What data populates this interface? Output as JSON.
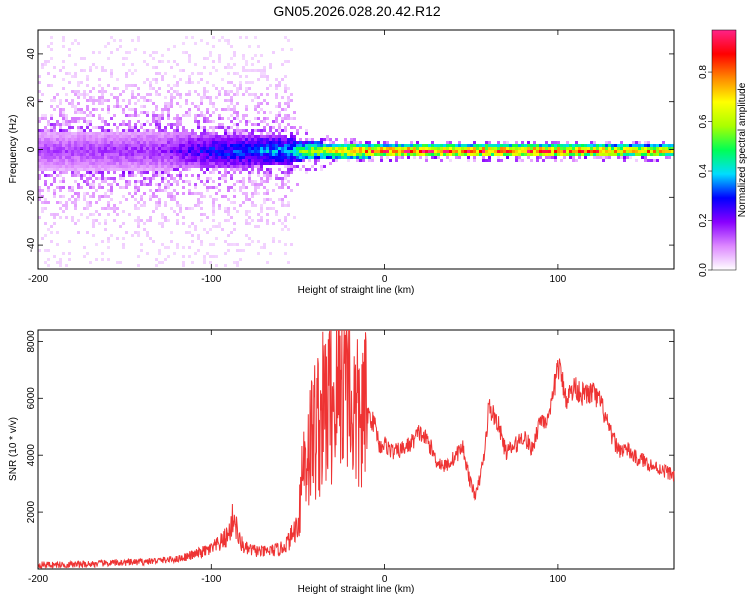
{
  "figure": {
    "title": "GN05.2026.028.20.42.R12"
  },
  "chart_data": [
    {
      "type": "heatmap",
      "id": "spectrogram",
      "xlabel": "Height of straight line (km)",
      "ylabel": "Frequency (Hz)",
      "xlim": [
        -200,
        167
      ],
      "ylim": [
        -50,
        50
      ],
      "xticks": [
        -200,
        -100,
        0,
        100
      ],
      "yticks": [
        -40,
        -20,
        0,
        20,
        40
      ],
      "colorbar": {
        "label": "Normalized spectral amplitude",
        "range": [
          0,
          0.97
        ],
        "ticks": [
          0,
          0.2,
          0.4,
          0.6,
          0.8
        ],
        "colors": [
          "#ffffff",
          "#dd88ff",
          "#8800ff",
          "#0000ff",
          "#00ddff",
          "#00ff55",
          "#aaff00",
          "#ffff00",
          "#ff8800",
          "#ff0000",
          "#ff2288"
        ]
      },
      "band_profile": [
        {
          "x": -200,
          "center": 0,
          "halfwidth": 8,
          "amplitude": 0.15,
          "spread": 48
        },
        {
          "x": -130,
          "center": 0,
          "halfwidth": 8,
          "amplitude": 0.18,
          "spread": 48
        },
        {
          "x": -100,
          "center": 1,
          "halfwidth": 7,
          "amplitude": 0.3,
          "spread": 48
        },
        {
          "x": -55,
          "center": 1,
          "halfwidth": 6,
          "amplitude": 0.4,
          "spread": 48
        },
        {
          "x": -50,
          "center": 0,
          "halfwidth": 4,
          "amplitude": 0.55,
          "spread": 10
        },
        {
          "x": -20,
          "center": 0,
          "halfwidth": 3,
          "amplitude": 0.8,
          "spread": 5
        },
        {
          "x": 0,
          "center": 0,
          "halfwidth": 2.5,
          "amplitude": 0.92,
          "spread": 4
        },
        {
          "x": 100,
          "center": 0,
          "halfwidth": 2.5,
          "amplitude": 0.9,
          "spread": 4
        },
        {
          "x": 167,
          "center": 0,
          "halfwidth": 2.5,
          "amplitude": 0.75,
          "spread": 4
        }
      ]
    },
    {
      "type": "line",
      "id": "snr",
      "xlabel": "Height of straight line (km)",
      "ylabel": "SNR (10 * v/v)",
      "xlim": [
        -200,
        167
      ],
      "ylim": [
        0,
        8400
      ],
      "xticks": [
        -200,
        -100,
        0,
        100
      ],
      "yticks": [
        2000,
        4000,
        6000,
        8000
      ],
      "color": "#ee3333",
      "series": [
        {
          "x": [
            -200,
            -180,
            -160,
            -140,
            -120,
            -110,
            -100,
            -95,
            -90,
            -87,
            -84,
            -80,
            -70,
            -60,
            -55,
            -50,
            -47,
            -44,
            -40,
            -35,
            -30,
            -25,
            -22,
            -20,
            -18,
            -15,
            -10,
            -5,
            -3,
            0,
            5,
            10,
            15,
            20,
            25,
            30,
            35,
            40,
            45,
            50,
            53,
            55,
            58,
            60,
            65,
            70,
            75,
            80,
            85,
            90,
            95,
            100,
            105,
            110,
            115,
            120,
            125,
            130,
            135,
            140,
            145,
            150,
            155,
            160,
            167
          ],
          "y": [
            150,
            150,
            200,
            250,
            350,
            500,
            700,
            900,
            1200,
            1900,
            1000,
            700,
            600,
            700,
            1000,
            1600,
            3800,
            4200,
            5000,
            5500,
            6000,
            6500,
            8200,
            6000,
            5500,
            5200,
            5500,
            5000,
            4300,
            4400,
            4100,
            4200,
            4400,
            4800,
            4500,
            3800,
            3600,
            3900,
            4300,
            2900,
            2600,
            3200,
            4200,
            5700,
            5200,
            4100,
            4300,
            4700,
            4200,
            5300,
            5200,
            7200,
            6000,
            6400,
            6100,
            6200,
            5800,
            4800,
            4200,
            4200,
            3900,
            3800,
            3600,
            3500,
            3300
          ]
        }
      ]
    }
  ]
}
